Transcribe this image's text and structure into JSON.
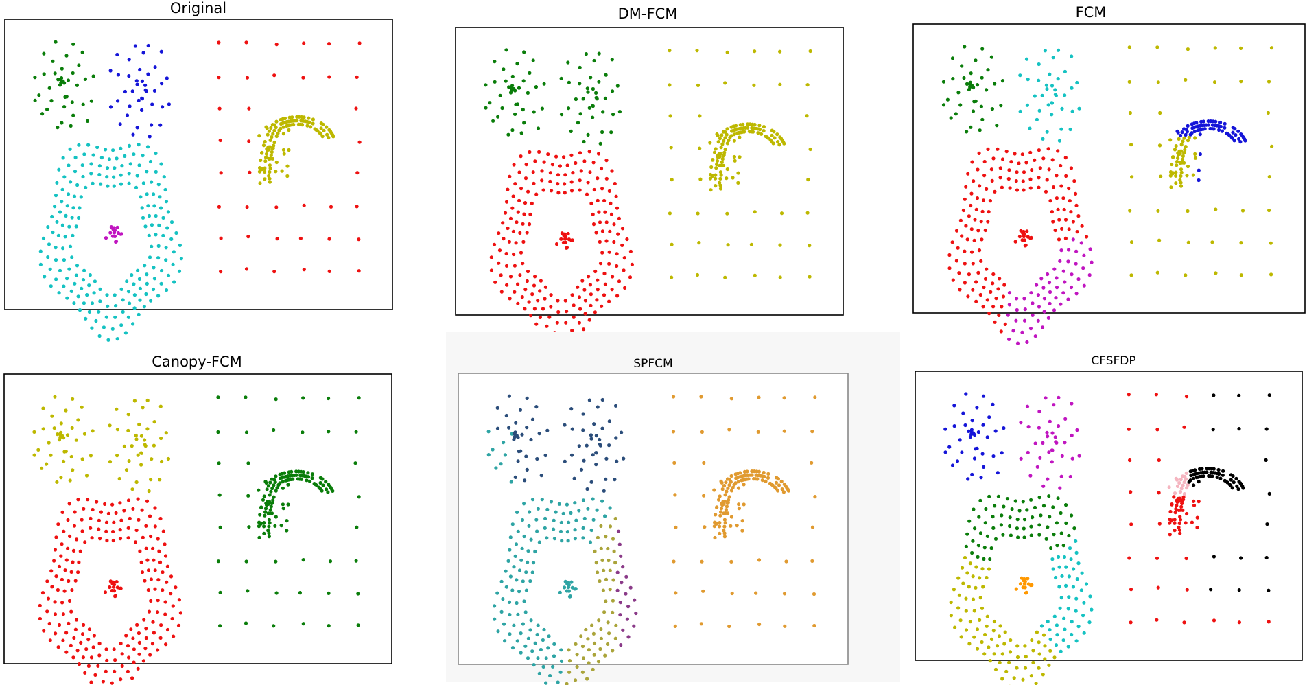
{
  "colors": {
    "green": "#0a7d0a",
    "blue": "#1515d8",
    "red": "#ee1111",
    "yellow": "#bdb800",
    "cyan": "#15c2c2",
    "magenta": "#c015c0",
    "black": "#000000",
    "pink": "#f5b5c0",
    "navy": "#2b4d7a",
    "teal": "#2ea4a4",
    "orange": "#e09a30",
    "olive": "#aaa43a",
    "purple": "#8a3a88",
    "s_orange": "#ff9800"
  },
  "chart_data": [
    {
      "type": "scatter",
      "title": "Original",
      "assignment": {
        "g1": "green",
        "g2": "blue",
        "grid": "red",
        "arc": "yellow",
        "ring": "cyan",
        "inner": "magenta"
      }
    },
    {
      "type": "scatter",
      "title": "DM-FCM",
      "assignment": {
        "g1": "green",
        "g2": "green",
        "grid": "yellow",
        "arc": "yellow",
        "ring": "red",
        "inner": "red"
      }
    },
    {
      "type": "scatter",
      "title": "FCM",
      "assignment": {
        "g1": "green",
        "g2": "cyan",
        "grid": "yellow",
        "arc": "split_fcm",
        "ring": "split_fcm",
        "inner": "red"
      }
    },
    {
      "type": "scatter",
      "title": "Canopy-FCM",
      "assignment": {
        "g1": "yellow",
        "g2": "yellow",
        "grid": "green",
        "arc": "green",
        "ring": "red",
        "inner": "red"
      }
    },
    {
      "type": "scatter",
      "title": "SPFCM",
      "assignment": {
        "g1": "split_spfcm",
        "g2": "navy",
        "grid": "orange",
        "arc": "orange",
        "ring": "split_spfcm",
        "inner": "teal"
      }
    },
    {
      "type": "scatter",
      "title": "CFSFDP",
      "assignment": {
        "g1": "blue",
        "g2": "magenta",
        "grid": "split_cfsfdp",
        "arc": "split_cfsfdp",
        "ring": "split_cfsfdp",
        "inner": "s_orange"
      }
    }
  ]
}
